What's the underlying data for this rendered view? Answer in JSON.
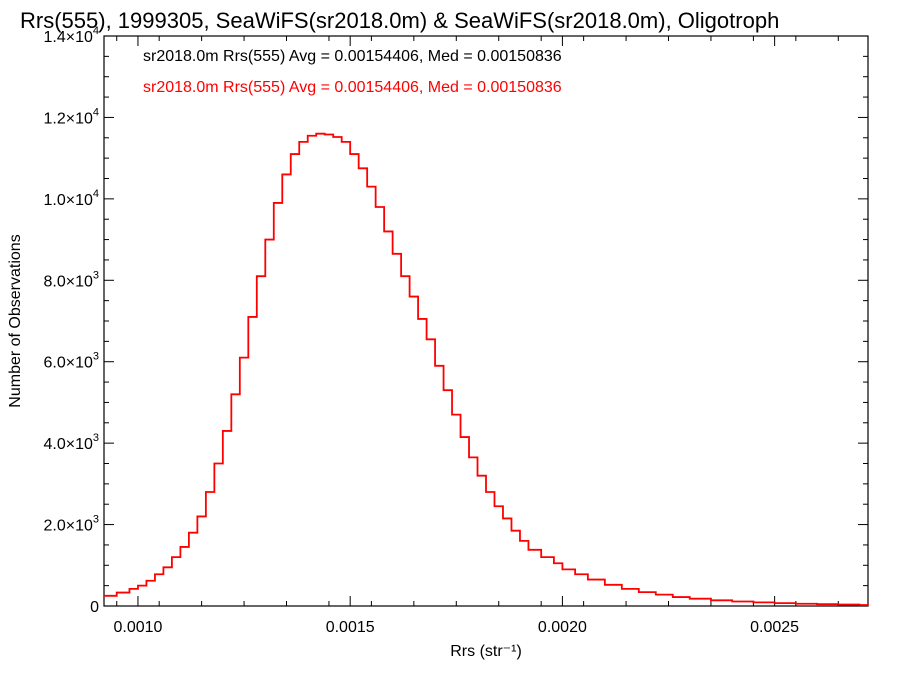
{
  "chart_data": {
    "type": "line",
    "title": "Rrs(555), 1999305, SeaWiFS(sr2018.0m) & SeaWiFS(sr2018.0m), Oligotroph",
    "xlabel": "Rrs (str⁻¹)",
    "ylabel": "Number of Observations",
    "xlim": [
      0.00092,
      0.00272
    ],
    "ylim": [
      0,
      14000
    ],
    "x_tick_labels": [
      "0.0010",
      "0.0015",
      "0.0020",
      "0.0025"
    ],
    "x_ticks": [
      0.001,
      0.0015,
      0.002,
      0.0025
    ],
    "y_ticks": [
      0,
      2000,
      4000,
      6000,
      8000,
      10000,
      12000,
      14000
    ],
    "y_tick_labels": [
      {
        "mantissa": "0",
        "exp": ""
      },
      {
        "mantissa": "2.0×10",
        "exp": "3"
      },
      {
        "mantissa": "4.0×10",
        "exp": "3"
      },
      {
        "mantissa": "6.0×10",
        "exp": "3"
      },
      {
        "mantissa": "8.0×10",
        "exp": "3"
      },
      {
        "mantissa": "1.0×10",
        "exp": "4"
      },
      {
        "mantissa": "1.2×10",
        "exp": "4"
      },
      {
        "mantissa": "1.4×10",
        "exp": "4"
      }
    ],
    "annotations": [
      {
        "text": "sr2018.0m Rrs(555) Avg = 0.00154406, Med = 0.00150836",
        "color": "#000000"
      },
      {
        "text": "sr2018.0m Rrs(555) Avg = 0.00154406, Med = 0.00150836",
        "color": "#ff0000"
      }
    ],
    "series": [
      {
        "color": "#ff0000",
        "style": "step",
        "x": [
          0.00092,
          0.00095,
          0.00098,
          0.001,
          0.00102,
          0.00104,
          0.00106,
          0.00108,
          0.0011,
          0.00112,
          0.00114,
          0.00116,
          0.00118,
          0.0012,
          0.00122,
          0.00124,
          0.00126,
          0.00128,
          0.0013,
          0.00132,
          0.00134,
          0.00136,
          0.00138,
          0.0014,
          0.00142,
          0.00144,
          0.00146,
          0.00148,
          0.0015,
          0.00152,
          0.00154,
          0.00156,
          0.00158,
          0.0016,
          0.00162,
          0.00164,
          0.00166,
          0.00168,
          0.0017,
          0.00172,
          0.00174,
          0.00176,
          0.00178,
          0.0018,
          0.00182,
          0.00184,
          0.00186,
          0.00188,
          0.0019,
          0.00192,
          0.00195,
          0.00198,
          0.002,
          0.00203,
          0.00206,
          0.0021,
          0.00214,
          0.00218,
          0.00222,
          0.00226,
          0.0023,
          0.00235,
          0.0024,
          0.00245,
          0.0025,
          0.00255,
          0.0026,
          0.00265,
          0.0027,
          0.00272
        ],
        "values": [
          250,
          330,
          420,
          500,
          620,
          780,
          950,
          1200,
          1450,
          1800,
          2200,
          2800,
          3500,
          4300,
          5200,
          6100,
          7100,
          8100,
          9000,
          9900,
          10600,
          11100,
          11400,
          11550,
          11600,
          11580,
          11520,
          11400,
          11100,
          10750,
          10300,
          9800,
          9200,
          8650,
          8100,
          7600,
          7050,
          6550,
          5900,
          5300,
          4700,
          4150,
          3650,
          3200,
          2800,
          2450,
          2150,
          1850,
          1600,
          1380,
          1200,
          1050,
          900,
          780,
          650,
          520,
          420,
          340,
          280,
          220,
          180,
          140,
          110,
          90,
          70,
          55,
          45,
          35,
          25,
          20
        ]
      }
    ]
  }
}
